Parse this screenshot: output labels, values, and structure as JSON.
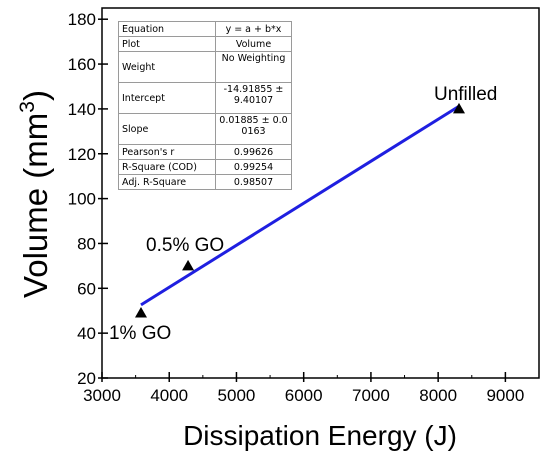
{
  "chart_data": {
    "type": "scatter",
    "xlabel": "Dissipation Energy (J)",
    "ylabel_main": "Volume (mm",
    "ylabel_sup": "3",
    "ylabel_end": ")",
    "xlim": [
      3000,
      9500
    ],
    "ylim": [
      20,
      185
    ],
    "xticks": [
      3000,
      4000,
      5000,
      6000,
      7000,
      8000,
      9000
    ],
    "yticks": [
      20,
      40,
      60,
      80,
      100,
      120,
      140,
      160,
      180
    ],
    "grid": false,
    "points": [
      {
        "label": "1% GO",
        "x": 3580,
        "y": 49
      },
      {
        "label": "0.5% GO",
        "x": 4280,
        "y": 70
      },
      {
        "label": "Unfilled",
        "x": 8310,
        "y": 140
      }
    ],
    "fit_line": {
      "x": [
        3580,
        8310
      ],
      "y": [
        52.6,
        141.2
      ],
      "color": "#1f1fe0"
    },
    "marker_color": "#000000",
    "fit_table": [
      {
        "key": "Equation",
        "value": "y = a + b*x"
      },
      {
        "key": "Plot",
        "value": "Volume"
      },
      {
        "key": "Weight",
        "value": "No Weighting"
      },
      {
        "key": "Intercept",
        "value": "-14.91855 ± 9.40107"
      },
      {
        "key": "Slope",
        "value": "0.01885 ± 0.00163"
      },
      {
        "key": "Pearson's r",
        "value": "0.99626"
      },
      {
        "key": "R-Square (COD)",
        "value": "0.99254"
      },
      {
        "key": "Adj. R-Square",
        "value": "0.98507"
      }
    ]
  }
}
